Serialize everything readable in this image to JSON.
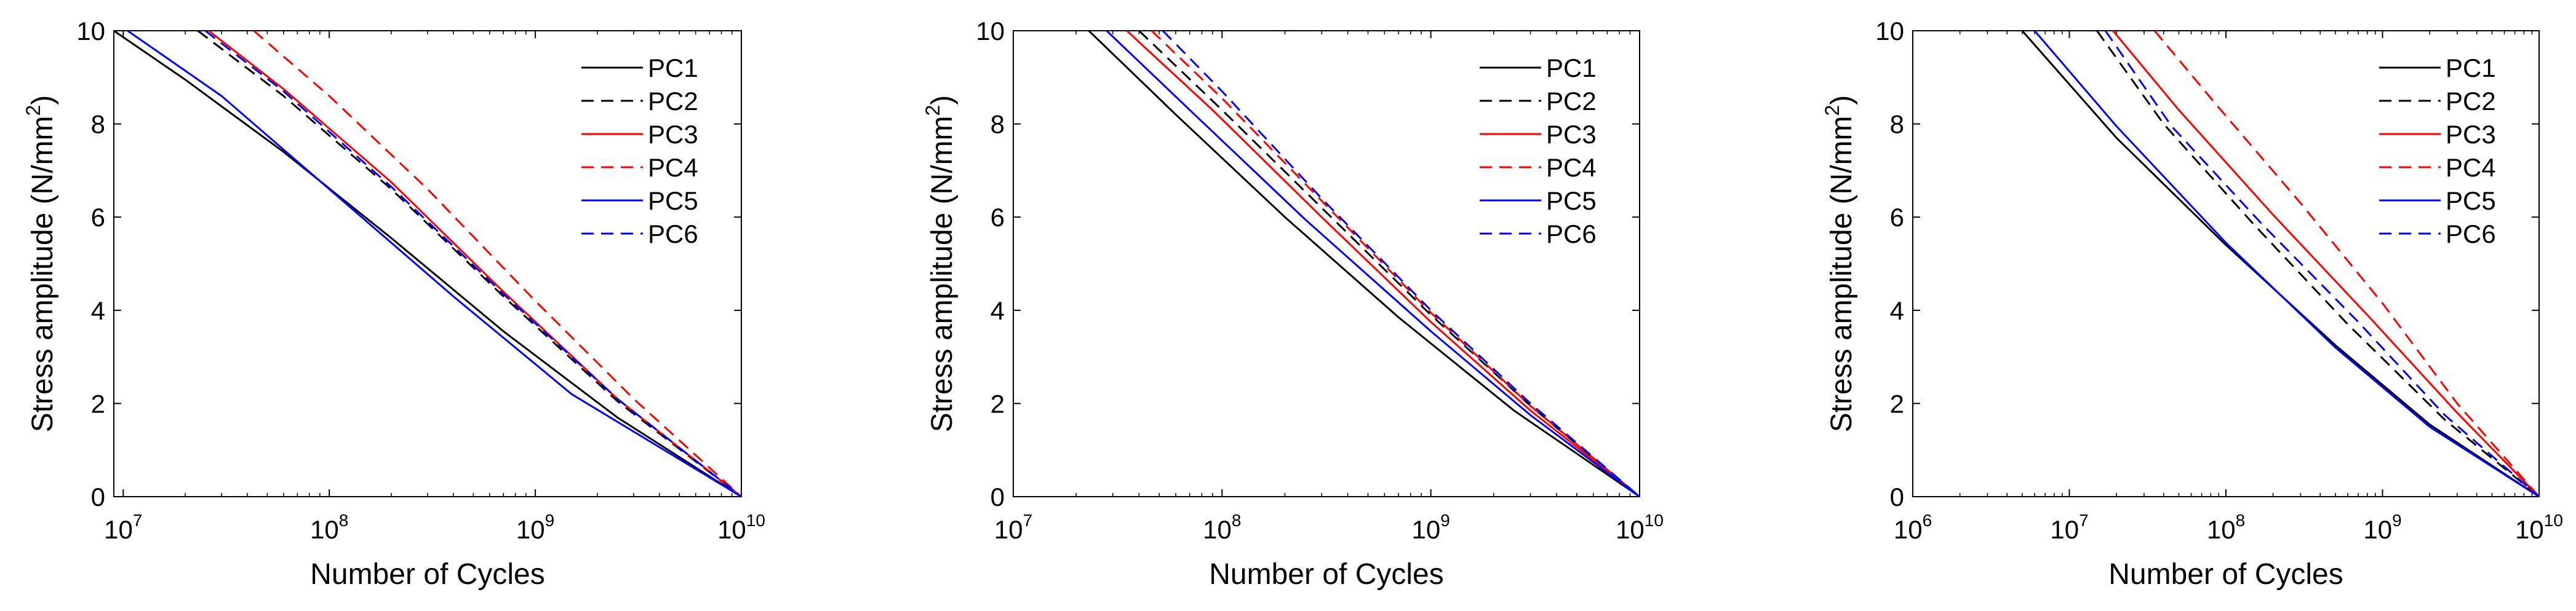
{
  "chart_data": [
    {
      "type": "line",
      "xscale": "log",
      "xlim": [
        9000000,
        10000000000
      ],
      "ylim": [
        0,
        10
      ],
      "xlabel": "Number of Cycles",
      "ylabel": "Stress amplitude (N/mm",
      "ylabel_sup": "2",
      "ylabel_close": ")",
      "xticks": [
        {
          "value": 10000000,
          "base": "10",
          "exp": "7"
        },
        {
          "value": 100000000,
          "base": "10",
          "exp": "8"
        },
        {
          "value": 1000000000,
          "base": "10",
          "exp": "9"
        },
        {
          "value": 10000000000,
          "base": "10",
          "exp": "10"
        }
      ],
      "yticks": [
        {
          "value": 0,
          "label": "0"
        },
        {
          "value": 2,
          "label": "2"
        },
        {
          "value": 4,
          "label": "4"
        },
        {
          "value": 6,
          "label": "6"
        },
        {
          "value": 8,
          "label": "8"
        },
        {
          "value": 10,
          "label": "10"
        }
      ],
      "legend_position": "top-right",
      "series": [
        {
          "name": "PC1",
          "color": "#000000",
          "dash": "solid",
          "x": [
            9000000,
            20000000,
            60000000,
            200000000,
            700000000,
            2500000000,
            10000000000
          ],
          "y": [
            10,
            8.95,
            7.4,
            5.55,
            3.55,
            1.7,
            0
          ]
        },
        {
          "name": "PC2",
          "color": "#000000",
          "dash": "dashed",
          "x": [
            23000000,
            60000000,
            200000000,
            700000000,
            2500000000,
            10000000000
          ],
          "y": [
            10,
            8.6,
            6.6,
            4.3,
            2.05,
            0
          ]
        },
        {
          "name": "PC3",
          "color": "#ff0000",
          "dash": "solid",
          "x": [
            26000000,
            60000000,
            200000000,
            700000000,
            2500000000,
            10000000000
          ],
          "y": [
            10,
            8.75,
            6.75,
            4.4,
            2.1,
            0
          ]
        },
        {
          "name": "PC4",
          "color": "#ff0000",
          "dash": "dashed",
          "x": [
            43000000,
            100000000,
            300000000,
            1000000000,
            3000000000,
            10000000000
          ],
          "y": [
            10,
            8.6,
            6.6,
            4.2,
            2.1,
            0
          ]
        },
        {
          "name": "PC5",
          "color": "#0000ff",
          "dash": "solid",
          "x": [
            10500000,
            30000000,
            100000000,
            400000000,
            1500000000,
            10000000000
          ],
          "y": [
            10,
            8.6,
            6.6,
            4.3,
            2.2,
            0
          ]
        },
        {
          "name": "PC6",
          "color": "#0000ff",
          "dash": "dashed",
          "x": [
            25000000,
            60000000,
            200000000,
            700000000,
            2500000000,
            10000000000
          ],
          "y": [
            10,
            8.7,
            6.65,
            4.35,
            2.1,
            0
          ]
        }
      ]
    },
    {
      "type": "line",
      "xscale": "log",
      "xlim": [
        10000000,
        10000000000
      ],
      "ylim": [
        0,
        10
      ],
      "xlabel": "Number of Cycles",
      "ylabel": "Stress amplitude (N/mm",
      "ylabel_sup": "2",
      "ylabel_close": ")",
      "xticks": [
        {
          "value": 10000000,
          "base": "10",
          "exp": "7"
        },
        {
          "value": 100000000,
          "base": "10",
          "exp": "8"
        },
        {
          "value": 1000000000,
          "base": "10",
          "exp": "9"
        },
        {
          "value": 10000000000,
          "base": "10",
          "exp": "10"
        }
      ],
      "yticks": [
        {
          "value": 0,
          "label": "0"
        },
        {
          "value": 2,
          "label": "2"
        },
        {
          "value": 4,
          "label": "4"
        },
        {
          "value": 6,
          "label": "6"
        },
        {
          "value": 8,
          "label": "8"
        },
        {
          "value": 10,
          "label": "10"
        }
      ],
      "legend_position": "top-right",
      "series": [
        {
          "name": "PC1",
          "color": "#000000",
          "dash": "solid",
          "x": [
            23000000,
            60000000,
            200000000,
            700000000,
            2500000000,
            10000000000
          ],
          "y": [
            10,
            8.2,
            6.0,
            3.85,
            1.85,
            0
          ]
        },
        {
          "name": "PC2",
          "color": "#000000",
          "dash": "dashed",
          "x": [
            40000000,
            100000000,
            300000000,
            1000000000,
            3000000000,
            10000000000
          ],
          "y": [
            10,
            8.3,
            6.2,
            3.9,
            1.95,
            0
          ]
        },
        {
          "name": "PC3",
          "color": "#ff0000",
          "dash": "solid",
          "x": [
            35000000,
            90000000,
            300000000,
            1000000000,
            3000000000,
            10000000000
          ],
          "y": [
            10,
            8.3,
            6.0,
            3.75,
            1.85,
            0
          ]
        },
        {
          "name": "PC4",
          "color": "#ff0000",
          "dash": "dashed",
          "x": [
            46000000,
            100000000,
            300000000,
            1000000000,
            3000000000,
            10000000000
          ],
          "y": [
            10,
            8.55,
            6.35,
            3.95,
            1.95,
            0
          ]
        },
        {
          "name": "PC5",
          "color": "#0000ff",
          "dash": "solid",
          "x": [
            28000000,
            70000000,
            250000000,
            1000000000,
            3000000000,
            10000000000
          ],
          "y": [
            10,
            8.3,
            5.95,
            3.55,
            1.75,
            0
          ]
        },
        {
          "name": "PC6",
          "color": "#0000ff",
          "dash": "dashed",
          "x": [
            52000000,
            100000000,
            300000000,
            1000000000,
            3000000000,
            10000000000
          ],
          "y": [
            10,
            8.7,
            6.4,
            4.0,
            2.0,
            0
          ]
        }
      ]
    },
    {
      "type": "line",
      "xscale": "log",
      "xlim": [
        1000000,
        10000000000
      ],
      "ylim": [
        0,
        10
      ],
      "xlabel": "Number of Cycles",
      "ylabel": "Stress amplitude (N/mm",
      "ylabel_sup": "2",
      "ylabel_close": ")",
      "xticks": [
        {
          "value": 1000000,
          "base": "10",
          "exp": "6"
        },
        {
          "value": 10000000,
          "base": "10",
          "exp": "7"
        },
        {
          "value": 100000000,
          "base": "10",
          "exp": "8"
        },
        {
          "value": 1000000000,
          "base": "10",
          "exp": "9"
        },
        {
          "value": 10000000000,
          "base": "10",
          "exp": "10"
        }
      ],
      "yticks": [
        {
          "value": 0,
          "label": "0"
        },
        {
          "value": 2,
          "label": "2"
        },
        {
          "value": 4,
          "label": "4"
        },
        {
          "value": 6,
          "label": "6"
        },
        {
          "value": 8,
          "label": "8"
        },
        {
          "value": 10,
          "label": "10"
        }
      ],
      "legend_position": "top-right",
      "series": [
        {
          "name": "PC1",
          "color": "#000000",
          "dash": "solid",
          "x": [
            5000000,
            20000000,
            100000000,
            500000000,
            2000000000,
            10000000000
          ],
          "y": [
            10,
            7.7,
            5.4,
            3.25,
            1.55,
            0
          ]
        },
        {
          "name": "PC2",
          "color": "#000000",
          "dash": "dashed",
          "x": [
            15000000,
            40000000,
            150000000,
            600000000,
            2500000000,
            10000000000
          ],
          "y": [
            10,
            8.0,
            5.85,
            3.7,
            1.65,
            0
          ]
        },
        {
          "name": "PC3",
          "color": "#ff0000",
          "dash": "solid",
          "x": [
            19000000,
            50000000,
            200000000,
            800000000,
            3000000000,
            10000000000
          ],
          "y": [
            10,
            8.3,
            6.05,
            3.9,
            1.8,
            0
          ]
        },
        {
          "name": "PC4",
          "color": "#ff0000",
          "dash": "dashed",
          "x": [
            35000000,
            90000000,
            300000000,
            1000000000,
            3000000000,
            10000000000
          ],
          "y": [
            10,
            8.35,
            6.3,
            4.15,
            2.0,
            0
          ]
        },
        {
          "name": "PC5",
          "color": "#0000ff",
          "dash": "solid",
          "x": [
            6000000,
            20000000,
            100000000,
            500000000,
            2000000000,
            10000000000
          ],
          "y": [
            10,
            7.95,
            5.45,
            3.2,
            1.5,
            0
          ]
        },
        {
          "name": "PC6",
          "color": "#0000ff",
          "dash": "dashed",
          "x": [
            17000000,
            45000000,
            170000000,
            700000000,
            2500000000,
            10000000000
          ],
          "y": [
            10,
            7.95,
            5.85,
            3.75,
            1.75,
            0
          ]
        }
      ]
    }
  ]
}
